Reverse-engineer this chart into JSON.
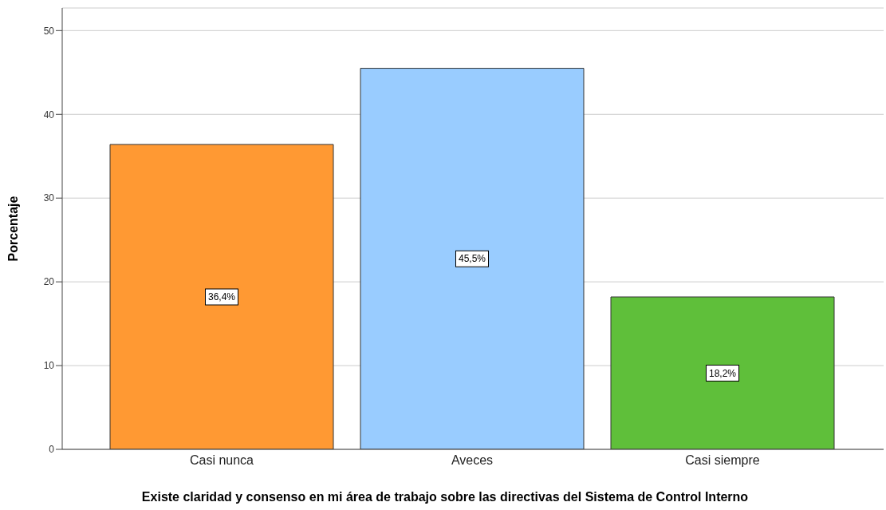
{
  "chart_data": {
    "type": "bar",
    "categories": [
      "Casi nunca",
      "Aveces",
      "Casi siempre"
    ],
    "values": [
      36.4,
      45.5,
      18.2
    ],
    "colors": [
      "#ff9933",
      "#99ccff",
      "#5fbf3a"
    ],
    "value_labels": [
      "36,4%",
      "45,5%",
      "18,2%"
    ],
    "ylim": [
      0,
      52.7
    ],
    "yticks": [
      0,
      10,
      20,
      30,
      40,
      50
    ],
    "grid": "y",
    "ylabel": "Porcentaje",
    "xlabel": "Existe claridad y consenso en mi área de trabajo sobre las directivas del Sistema de Control Interno"
  }
}
